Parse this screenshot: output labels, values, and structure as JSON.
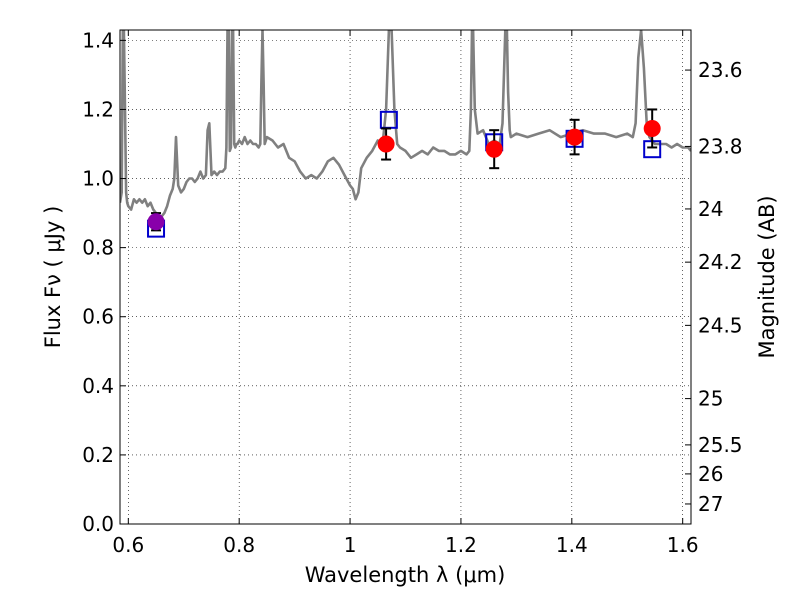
{
  "chart_data": {
    "type": "line",
    "title": "",
    "xlabel": "Wavelength  λ (μm)",
    "ylabel": "Flux  Fν  ( μJy )",
    "ylabel_right": "Magnitude (AB)",
    "xlim": [
      0.585,
      1.615
    ],
    "ylim": [
      0.0,
      1.43
    ],
    "grid": true,
    "x_ticks": [
      {
        "value": 0.6,
        "label": "0.6"
      },
      {
        "value": 0.8,
        "label": "0.8"
      },
      {
        "value": 1.0,
        "label": "1"
      },
      {
        "value": 1.2,
        "label": "1.2"
      },
      {
        "value": 1.4,
        "label": "1.4"
      },
      {
        "value": 1.6,
        "label": "1.6"
      }
    ],
    "y_ticks": [
      {
        "value": 0.0,
        "label": "0.0"
      },
      {
        "value": 0.2,
        "label": "0.2"
      },
      {
        "value": 0.4,
        "label": "0.4"
      },
      {
        "value": 0.6,
        "label": "0.6"
      },
      {
        "value": 0.8,
        "label": "0.8"
      },
      {
        "value": 1.0,
        "label": "1.0"
      },
      {
        "value": 1.2,
        "label": "1.2"
      },
      {
        "value": 1.4,
        "label": "1.4"
      }
    ],
    "right_ticks": [
      {
        "flux": 1.314,
        "label": "23.6"
      },
      {
        "flux": 1.093,
        "label": "23.8"
      },
      {
        "flux": 0.912,
        "label": "24"
      },
      {
        "flux": 0.758,
        "label": "24.2"
      },
      {
        "flux": 0.575,
        "label": "24.5"
      },
      {
        "flux": 0.363,
        "label": "25"
      },
      {
        "flux": 0.229,
        "label": "25.5"
      },
      {
        "flux": 0.145,
        "label": "26"
      },
      {
        "flux": 0.058,
        "label": "27"
      }
    ],
    "series": [
      {
        "kind": "model-spectrum",
        "color": "#808080",
        "x": [
          0.585,
          0.588,
          0.59,
          0.592,
          0.594,
          0.596,
          0.598,
          0.6,
          0.605,
          0.61,
          0.615,
          0.62,
          0.625,
          0.63,
          0.635,
          0.64,
          0.645,
          0.65,
          0.655,
          0.66,
          0.665,
          0.67,
          0.675,
          0.68,
          0.683,
          0.686,
          0.69,
          0.695,
          0.7,
          0.705,
          0.71,
          0.715,
          0.72,
          0.725,
          0.73,
          0.735,
          0.74,
          0.743,
          0.746,
          0.75,
          0.755,
          0.76,
          0.765,
          0.77,
          0.775,
          0.777,
          0.779,
          0.781,
          0.783,
          0.785,
          0.787,
          0.789,
          0.791,
          0.793,
          0.795,
          0.797,
          0.8,
          0.805,
          0.81,
          0.815,
          0.82,
          0.825,
          0.83,
          0.835,
          0.838,
          0.84,
          0.842,
          0.844,
          0.846,
          0.85,
          0.86,
          0.87,
          0.88,
          0.89,
          0.9,
          0.91,
          0.92,
          0.93,
          0.94,
          0.95,
          0.96,
          0.97,
          0.98,
          0.99,
          1.0,
          1.005,
          1.01,
          1.015,
          1.02,
          1.03,
          1.04,
          1.05,
          1.055,
          1.06,
          1.065,
          1.07,
          1.075,
          1.08,
          1.085,
          1.09,
          1.1,
          1.11,
          1.12,
          1.13,
          1.14,
          1.15,
          1.16,
          1.17,
          1.18,
          1.19,
          1.2,
          1.21,
          1.215,
          1.218,
          1.22,
          1.222,
          1.225,
          1.23,
          1.24,
          1.25,
          1.26,
          1.27,
          1.275,
          1.28,
          1.283,
          1.285,
          1.288,
          1.29,
          1.3,
          1.32,
          1.34,
          1.36,
          1.38,
          1.4,
          1.42,
          1.44,
          1.46,
          1.48,
          1.5,
          1.51,
          1.515,
          1.52,
          1.525,
          1.53,
          1.535,
          1.54,
          1.55,
          1.56,
          1.57,
          1.58,
          1.59,
          1.6,
          1.61,
          1.615
        ],
        "y": [
          0.93,
          0.96,
          1.43,
          1.43,
          1.2,
          0.96,
          0.93,
          0.92,
          0.91,
          0.94,
          0.93,
          0.94,
          0.93,
          0.94,
          0.92,
          0.93,
          0.91,
          0.9,
          0.88,
          0.89,
          0.9,
          0.92,
          0.95,
          0.97,
          1.0,
          1.12,
          0.98,
          0.96,
          0.97,
          0.99,
          1.0,
          1.0,
          0.99,
          1.0,
          1.02,
          1.0,
          1.01,
          1.14,
          1.16,
          1.01,
          1.02,
          1.01,
          1.02,
          1.02,
          1.03,
          1.09,
          1.43,
          1.43,
          1.08,
          1.09,
          1.43,
          1.43,
          1.1,
          1.09,
          1.1,
          1.1,
          1.11,
          1.1,
          1.12,
          1.1,
          1.11,
          1.1,
          1.1,
          1.09,
          1.1,
          1.28,
          1.43,
          1.28,
          1.1,
          1.12,
          1.11,
          1.09,
          1.1,
          1.06,
          1.05,
          1.02,
          1.0,
          1.01,
          1.0,
          1.02,
          1.05,
          1.06,
          1.04,
          1.01,
          0.98,
          0.97,
          0.94,
          0.96,
          1.03,
          1.06,
          1.08,
          1.11,
          1.1,
          1.12,
          1.2,
          1.43,
          1.43,
          1.2,
          1.1,
          1.09,
          1.08,
          1.06,
          1.07,
          1.08,
          1.07,
          1.09,
          1.08,
          1.08,
          1.07,
          1.07,
          1.08,
          1.07,
          1.08,
          1.2,
          1.43,
          1.43,
          1.2,
          1.13,
          1.14,
          1.1,
          1.11,
          1.1,
          1.16,
          1.43,
          1.43,
          1.25,
          1.14,
          1.12,
          1.13,
          1.12,
          1.13,
          1.14,
          1.12,
          1.13,
          1.14,
          1.13,
          1.13,
          1.12,
          1.13,
          1.12,
          1.16,
          1.35,
          1.43,
          1.32,
          1.16,
          1.12,
          1.1,
          1.1,
          1.1,
          1.09,
          1.1,
          1.09,
          1.09,
          1.08
        ]
      },
      {
        "kind": "observed",
        "color": "#ff0000",
        "x": [
          1.065,
          1.26,
          1.405,
          1.545
        ],
        "y": [
          1.1,
          1.085,
          1.12,
          1.145
        ],
        "yerr": [
          0.045,
          0.055,
          0.05,
          0.055
        ]
      },
      {
        "kind": "observed-optical",
        "color": "#8800aa",
        "x": [
          0.65
        ],
        "y": [
          0.875
        ],
        "yerr": [
          0.025
        ]
      },
      {
        "kind": "model-bandpass",
        "color": "#0000cc",
        "x": [
          0.65,
          1.07,
          1.26,
          1.405,
          1.545
        ],
        "y": [
          0.855,
          1.17,
          1.105,
          1.115,
          1.085
        ]
      }
    ]
  }
}
